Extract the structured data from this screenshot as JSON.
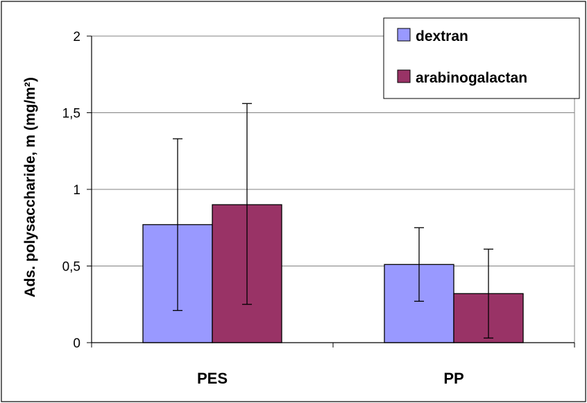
{
  "chart_data": {
    "type": "bar",
    "title": "",
    "xlabel": "",
    "ylabel": "Ads. polysaccharide, m (mg/m²)",
    "categories": [
      "PES",
      "PP"
    ],
    "series": [
      {
        "name": "dextran",
        "color": "#9999ff",
        "values": [
          0.77,
          0.51
        ],
        "error_low": [
          0.21,
          0.27
        ],
        "error_high": [
          1.33,
          0.75
        ]
      },
      {
        "name": "arabinogalactan",
        "color": "#993366",
        "values": [
          0.9,
          0.32
        ],
        "error_low": [
          0.25,
          0.03
        ],
        "error_high": [
          1.56,
          0.61
        ]
      }
    ],
    "ylim": [
      0,
      2
    ],
    "yticks": [
      0,
      0.5,
      1,
      1.5,
      2
    ],
    "ytick_labels": [
      "0",
      "0,5",
      "1",
      "1,5",
      "2"
    ],
    "grid": true,
    "legend_position": "top-right"
  }
}
